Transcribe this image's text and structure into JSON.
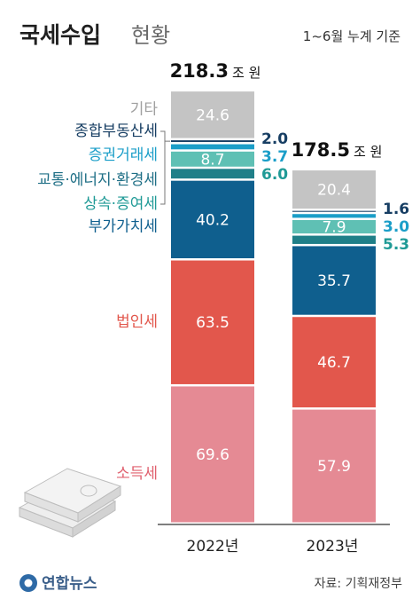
{
  "header": {
    "title_bold": "국세수입",
    "title_light": "현황",
    "note": "1~6월 누계 기준"
  },
  "chart_data": {
    "type": "bar",
    "stacked": true,
    "categories": [
      "2022년",
      "2023년"
    ],
    "totals": [
      {
        "value": "218.3",
        "unit": "조 원"
      },
      {
        "value": "178.5",
        "unit": "조 원"
      }
    ],
    "series": [
      {
        "name": "소득세",
        "values": [
          69.6,
          57.9
        ],
        "color": "#e58a94",
        "label_color": "#e0606e"
      },
      {
        "name": "법인세",
        "values": [
          63.5,
          46.7
        ],
        "color": "#e2574c",
        "label_color": "#e2574c"
      },
      {
        "name": "부가가치세",
        "values": [
          40.2,
          35.7
        ],
        "color": "#0f5f8e",
        "label_color": "#0f5f8e"
      },
      {
        "name": "상속·증여세",
        "values": [
          6.0,
          5.3
        ],
        "color": "#1f7f88",
        "label_color": "#1f9a96"
      },
      {
        "name": "교통·에너지·환경세",
        "values": [
          8.7,
          7.9
        ],
        "color": "#5fc0b4",
        "label_color": "#1f6f86"
      },
      {
        "name": "증권거래세",
        "values": [
          3.7,
          3.0
        ],
        "color": "#1b9ec8",
        "label_color": "#1b9ec8"
      },
      {
        "name": "종합부동산세",
        "values": [
          2.0,
          1.6
        ],
        "color": "#173e63",
        "label_color": "#173e63"
      },
      {
        "name": "기타",
        "values": [
          24.6,
          20.4
        ],
        "color": "#c4c4c4",
        "label_color": "#a0a0a0"
      }
    ],
    "value_labels": [
      [
        "69.6",
        "63.5",
        "40.2",
        "6.0",
        "8.7",
        "3.7",
        "2.0",
        "24.6"
      ],
      [
        "57.9",
        "46.7",
        "35.7",
        "5.3",
        "7.9",
        "3.0",
        "1.6",
        "20.4"
      ]
    ],
    "legend_placement": "left-of-first-bar",
    "grid": false
  },
  "footer": {
    "logo_text": "연합뉴스",
    "source": "자료: 기획재정부"
  }
}
